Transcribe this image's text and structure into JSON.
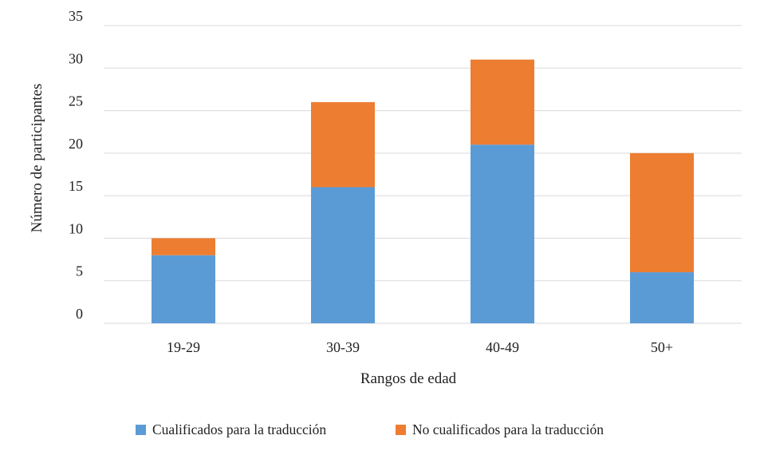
{
  "chart_data": {
    "type": "bar",
    "stacked": true,
    "categories": [
      "19-29",
      "30-39",
      "40-49",
      "50+"
    ],
    "series": [
      {
        "name": "Cualificados para la traducción",
        "values": [
          8,
          16,
          21,
          6
        ],
        "color": "#5B9BD5"
      },
      {
        "name": "No cualificados para la traducción",
        "values": [
          2,
          10,
          10,
          14
        ],
        "color": "#ED7D31"
      }
    ],
    "y_tick_labels": [
      "35",
      "30",
      "25",
      "20",
      "15",
      "10",
      "5",
      "0"
    ],
    "xlabel": "Rangos de edad",
    "ylabel": "Número de participantes",
    "ylim": [
      0,
      35
    ],
    "grid": true,
    "legend": "bottom"
  }
}
